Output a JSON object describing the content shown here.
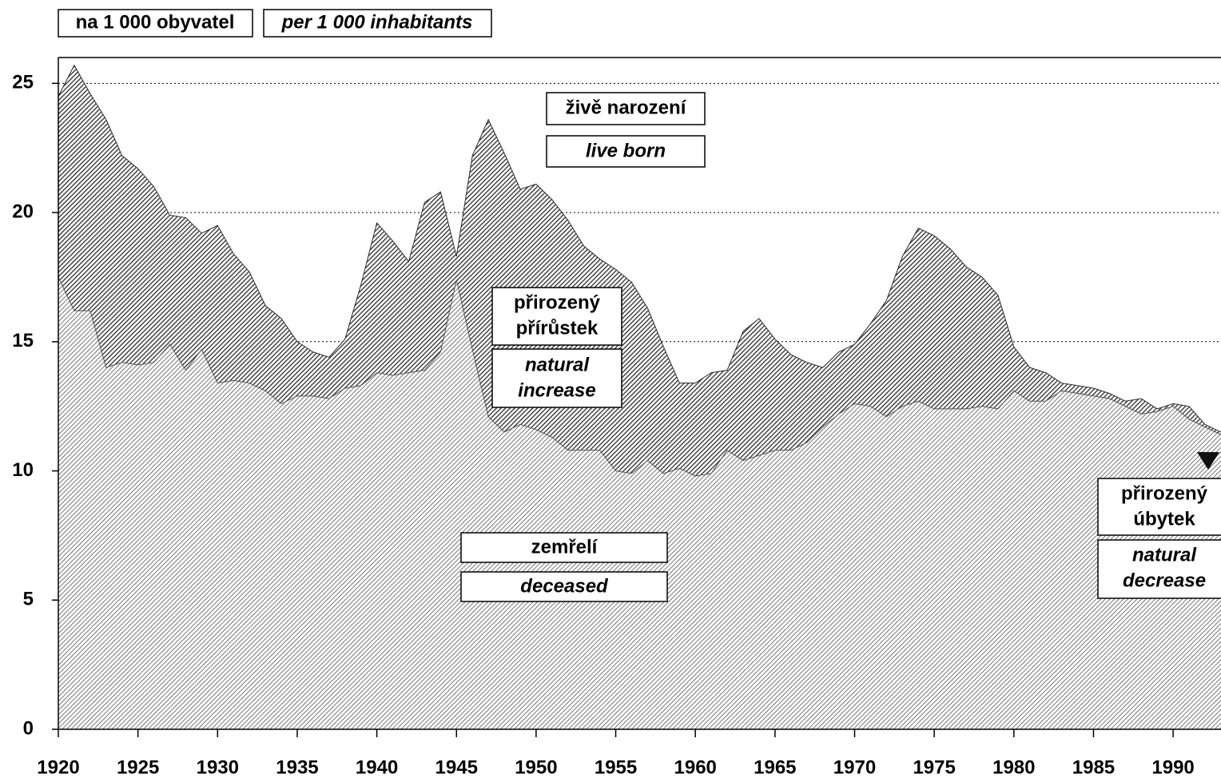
{
  "chart_data": {
    "type": "area",
    "unit_label": {
      "cz": "na 1 000 obyvatel",
      "en": "per 1 000 inhabitants"
    },
    "x": [
      1920,
      1921,
      1922,
      1923,
      1924,
      1925,
      1926,
      1927,
      1928,
      1929,
      1930,
      1931,
      1932,
      1933,
      1934,
      1935,
      1936,
      1937,
      1938,
      1939,
      1940,
      1941,
      1942,
      1943,
      1944,
      1945,
      1946,
      1947,
      1948,
      1949,
      1950,
      1951,
      1952,
      1953,
      1954,
      1955,
      1956,
      1957,
      1958,
      1959,
      1960,
      1961,
      1962,
      1963,
      1964,
      1965,
      1966,
      1967,
      1968,
      1969,
      1970,
      1971,
      1972,
      1973,
      1974,
      1975,
      1976,
      1977,
      1978,
      1979,
      1980,
      1981,
      1982,
      1983,
      1984,
      1985,
      1986,
      1987,
      1988,
      1989,
      1990,
      1991,
      1992,
      1993
    ],
    "series": [
      {
        "name": "živě narození",
        "name_en": "live born",
        "color": "#2b2b2b",
        "values": [
          24.5,
          25.7,
          24.6,
          23.6,
          22.2,
          21.7,
          21.0,
          19.9,
          19.8,
          19.2,
          19.5,
          18.4,
          17.7,
          16.4,
          15.9,
          15.0,
          14.6,
          14.4,
          15.1,
          17.2,
          19.6,
          18.9,
          18.1,
          20.4,
          20.8,
          18.3,
          22.2,
          23.6,
          22.3,
          20.9,
          21.1,
          20.5,
          19.7,
          18.7,
          18.2,
          17.8,
          17.3,
          16.3,
          14.8,
          13.4,
          13.4,
          13.8,
          13.9,
          15.4,
          15.9,
          15.1,
          14.5,
          14.2,
          14.0,
          14.6,
          14.9,
          15.7,
          16.6,
          18.3,
          19.4,
          19.1,
          18.6,
          17.9,
          17.5,
          16.8,
          14.8,
          14.0,
          13.8,
          13.4,
          13.3,
          13.2,
          13.0,
          12.7,
          12.8,
          12.4,
          12.6,
          12.5,
          11.8,
          11.5
        ]
      },
      {
        "name": "zemřelí",
        "name_en": "deceased",
        "color": "#555555",
        "values": [
          17.5,
          16.2,
          16.2,
          14.0,
          14.2,
          14.1,
          14.2,
          14.9,
          13.9,
          14.7,
          13.4,
          13.5,
          13.4,
          13.1,
          12.6,
          12.9,
          12.9,
          12.8,
          13.2,
          13.3,
          13.8,
          13.7,
          13.8,
          13.9,
          14.6,
          17.4,
          14.7,
          12.1,
          11.5,
          11.8,
          11.6,
          11.3,
          10.8,
          10.8,
          10.8,
          10.0,
          9.9,
          10.4,
          9.9,
          10.1,
          9.8,
          9.9,
          10.8,
          10.4,
          10.6,
          10.8,
          10.8,
          11.1,
          11.7,
          12.2,
          12.6,
          12.5,
          12.1,
          12.5,
          12.7,
          12.4,
          12.4,
          12.4,
          12.5,
          12.4,
          13.1,
          12.7,
          12.7,
          13.1,
          13.0,
          12.9,
          12.8,
          12.5,
          12.2,
          12.3,
          12.5,
          12.0,
          11.7,
          11.4
        ]
      }
    ],
    "annotations": [
      {
        "cz": [
          "přirozený",
          "přírůstek"
        ],
        "en": [
          "natural",
          "increase"
        ]
      },
      {
        "cz": [
          "přirozený",
          "úbytek"
        ],
        "en": [
          "natural",
          "decrease"
        ]
      }
    ],
    "xlim": [
      1920,
      1993
    ],
    "xticks": [
      1920,
      1925,
      1930,
      1935,
      1940,
      1945,
      1950,
      1955,
      1960,
      1965,
      1970,
      1975,
      1980,
      1985,
      1990
    ],
    "ylim": [
      0,
      26
    ],
    "yticks": [
      0,
      5,
      10,
      15,
      20,
      25
    ],
    "grid": true
  }
}
